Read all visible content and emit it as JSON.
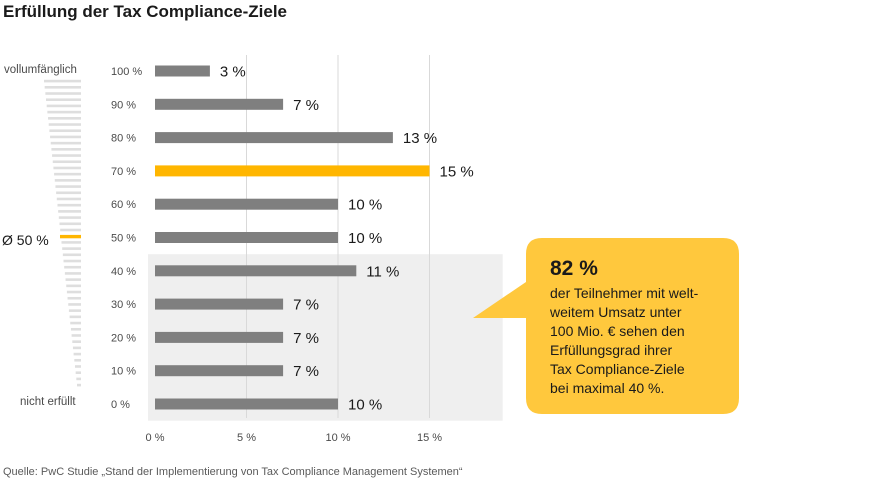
{
  "title": "Erfüllung der Tax Compliance-Ziele",
  "source": "Quelle: PwC Studie „Stand der Implementierung von Tax Compliance Management Systemen“",
  "scale": {
    "top_label": "vollumfänglich",
    "bottom_label": "nicht erfüllt",
    "average_label": "Ø 50 %",
    "average_value": 50
  },
  "callout": {
    "headline": "82 %",
    "text": "der Teilnehmer mit welt-weitem Umsatz unter 100 Mio. € sehen den Erfüllungsgrad ihrer Tax Compliance-Ziele bei maximal 40 %.",
    "lines": [
      "der Teilnehmer mit welt-",
      "weitem Umsatz unter",
      "100 Mio. € sehen den",
      "Erfüllungsgrad ihrer",
      "Tax Compliance-Ziele",
      "bei maximal 40 %."
    ]
  },
  "colors": {
    "bar": "#7f7f7f",
    "highlight": "#ffb600",
    "callout": "#ffc83d",
    "shade": "#efefef",
    "grid": "#d9d9d9"
  },
  "chart_data": {
    "type": "bar",
    "orientation": "horizontal",
    "categories": [
      "100 %",
      "90 %",
      "80 %",
      "70 %",
      "60 %",
      "50 %",
      "40 %",
      "30 %",
      "20 %",
      "10 %",
      "0 %"
    ],
    "values": [
      3,
      7,
      13,
      15,
      10,
      10,
      11,
      7,
      7,
      7,
      10
    ],
    "value_labels": [
      "3 %",
      "7 %",
      "13 %",
      "15 %",
      "10 %",
      "10 %",
      "11 %",
      "7 %",
      "7 %",
      "7 %",
      "10 %"
    ],
    "highlight_category": "70 %",
    "shaded_categories": [
      "40 %",
      "30 %",
      "20 %",
      "10 %",
      "0 %"
    ],
    "xticks": [
      0,
      5,
      10,
      15
    ],
    "xtick_labels": [
      "0 %",
      "5 %",
      "10 %",
      "15 %"
    ],
    "xlim": [
      0,
      19
    ],
    "grid": true,
    "title": "Erfüllung der Tax Compliance-Ziele"
  }
}
